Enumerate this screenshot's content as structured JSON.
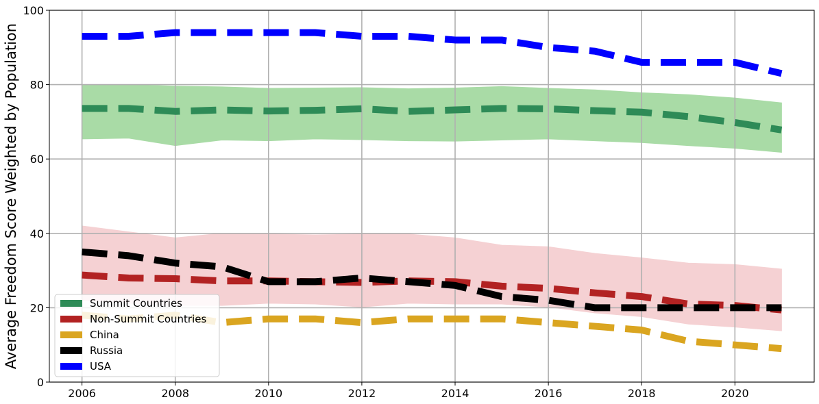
{
  "chart_data": {
    "type": "line",
    "title": "",
    "xlabel": "",
    "ylabel": "Average Freedom Score Weighted by Population",
    "xlim": [
      2005.3,
      2021.7
    ],
    "ylim": [
      0,
      100
    ],
    "x_ticks": [
      2006,
      2008,
      2010,
      2012,
      2014,
      2016,
      2018,
      2020
    ],
    "y_ticks": [
      0,
      20,
      40,
      60,
      80,
      100
    ],
    "grid": true,
    "legend_position": "lower-left",
    "x": [
      2006,
      2007,
      2008,
      2009,
      2010,
      2011,
      2012,
      2013,
      2014,
      2015,
      2016,
      2017,
      2018,
      2019,
      2020,
      2021
    ],
    "bands": [
      {
        "series": "Summit Countries",
        "color": "#a9dba6",
        "lower": [
          65.4,
          65.6,
          63.6,
          65.1,
          64.9,
          65.4,
          65.2,
          64.9,
          64.8,
          65.1,
          65.4,
          64.9,
          64.4,
          63.6,
          62.9,
          61.8
        ],
        "upper": [
          79.8,
          80.0,
          79.6,
          79.4,
          79.0,
          79.1,
          79.2,
          78.9,
          79.1,
          79.5,
          79.0,
          78.6,
          77.8,
          77.3,
          76.4,
          75.1
        ]
      },
      {
        "series": "Non-Summit Countries",
        "color": "#f5d1d3",
        "lower": [
          22.0,
          21.2,
          20.6,
          20.6,
          21.2,
          21.0,
          20.2,
          21.2,
          21.0,
          21.0,
          20.2,
          18.6,
          17.6,
          15.6,
          14.8,
          13.8
        ],
        "upper": [
          42.0,
          40.4,
          38.8,
          40.0,
          39.8,
          39.6,
          39.8,
          39.8,
          38.8,
          36.8,
          36.4,
          34.6,
          33.4,
          32.0,
          31.6,
          30.4
        ]
      }
    ],
    "series": [
      {
        "name": "Summit Countries",
        "color": "#2e8b57",
        "values": [
          73.6,
          73.6,
          72.8,
          73.2,
          72.9,
          73.1,
          73.5,
          72.8,
          73.2,
          73.6,
          73.5,
          73.0,
          72.6,
          71.4,
          69.8,
          67.8
        ]
      },
      {
        "name": "Non-Summit Countries",
        "color": "#b22222",
        "values": [
          28.8,
          28.0,
          27.8,
          27.2,
          27.2,
          27.0,
          26.8,
          27.2,
          27.0,
          25.8,
          25.2,
          24.0,
          23.0,
          21.0,
          20.6,
          19.4
        ]
      },
      {
        "name": "China",
        "color": "#daa520",
        "values": [
          18.0,
          17.0,
          18.0,
          16.0,
          17.0,
          17.0,
          16.0,
          17.0,
          17.0,
          17.0,
          16.0,
          15.0,
          14.0,
          11.0,
          10.0,
          9.0
        ]
      },
      {
        "name": "Russia",
        "color": "#000000",
        "values": [
          35.0,
          34.0,
          32.0,
          31.0,
          27.0,
          27.0,
          28.0,
          27.0,
          26.0,
          23.0,
          22.0,
          20.0,
          20.0,
          20.0,
          20.0,
          20.0
        ]
      },
      {
        "name": "USA",
        "color": "#0000ff",
        "values": [
          93.0,
          93.0,
          94.0,
          94.0,
          94.0,
          94.0,
          93.0,
          93.0,
          92.0,
          92.0,
          90.0,
          89.0,
          86.0,
          86.0,
          86.0,
          83.0
        ]
      }
    ]
  }
}
